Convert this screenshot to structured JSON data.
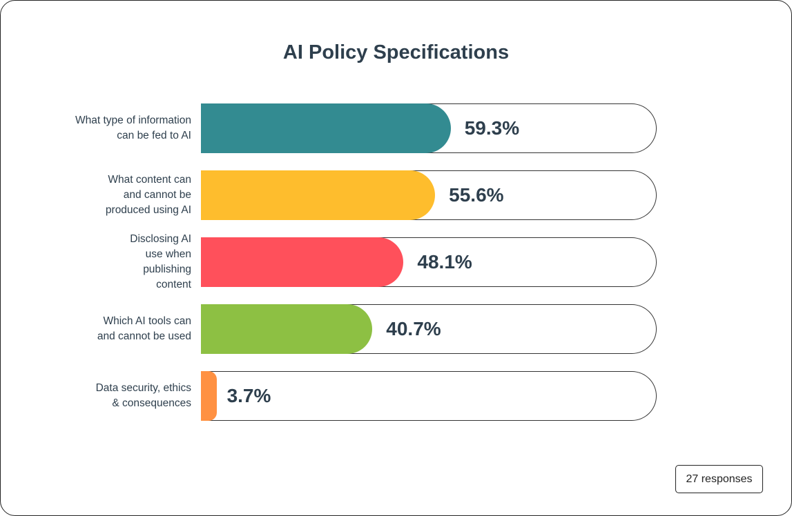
{
  "chart_data": {
    "type": "bar",
    "orientation": "horizontal",
    "title": "AI Policy Specifications",
    "categories": [
      "What type of information can be fed to AI",
      "What content can and cannot be produced using AI",
      "Disclosing AI use when publishing content",
      "Which AI tools can and cannot be used",
      "Data security, ethics & consequences"
    ],
    "values": [
      59.3,
      55.6,
      48.1,
      40.7,
      3.7
    ],
    "value_labels": [
      "59.3%",
      "55.6%",
      "48.1%",
      "40.7%",
      "3.7%"
    ],
    "colors": [
      "#338b91",
      "#febd2d",
      "#ff505b",
      "#8dc043",
      "#ff9142"
    ],
    "xlim": [
      0,
      100
    ]
  },
  "footer": {
    "responses": "27 responses"
  }
}
